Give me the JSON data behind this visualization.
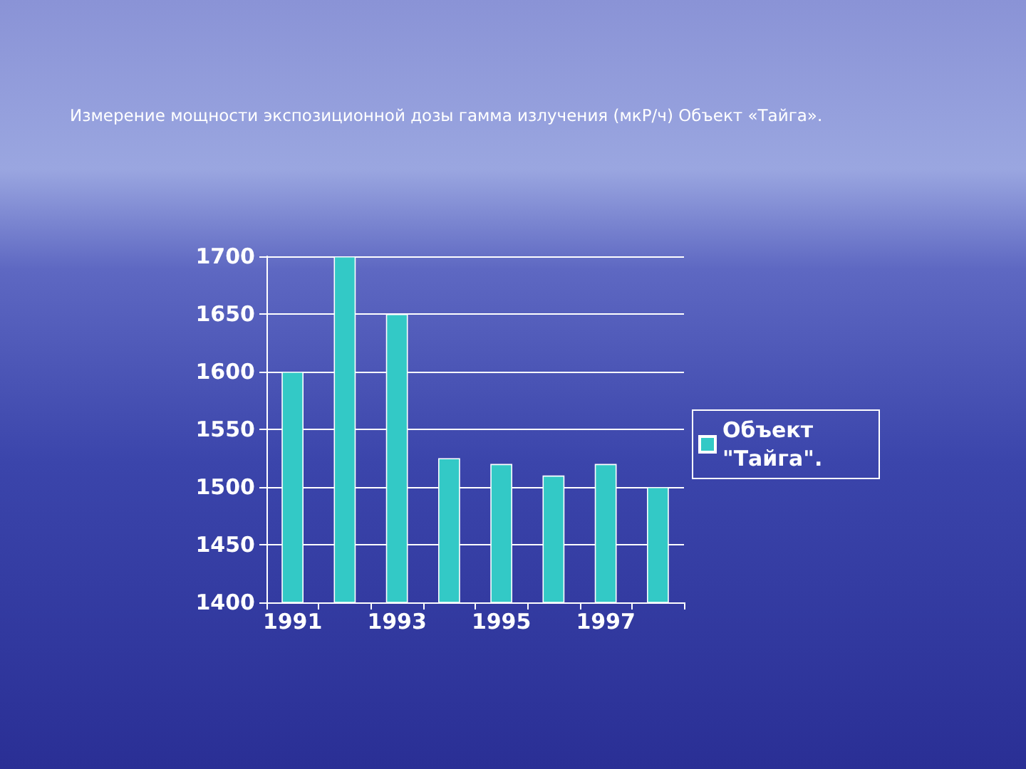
{
  "chart_data": {
    "type": "bar",
    "title": "Измерение мощности экспозиционной дозы гамма излучения (мкР/ч) Объект «Тайга».",
    "categories": [
      "1991",
      null,
      "1993",
      null,
      "1995",
      null,
      "1997",
      null
    ],
    "series": [
      {
        "name": "Объект \"Тайга\".",
        "color": "#33c9c6",
        "values": [
          1600,
          1700,
          1650,
          1525,
          1520,
          1510,
          1520,
          1500
        ]
      }
    ],
    "ylim": [
      1400,
      1700
    ],
    "yticks": [
      1400,
      1450,
      1500,
      1550,
      1600,
      1650,
      1700
    ],
    "grid": "y",
    "legend": "right"
  }
}
